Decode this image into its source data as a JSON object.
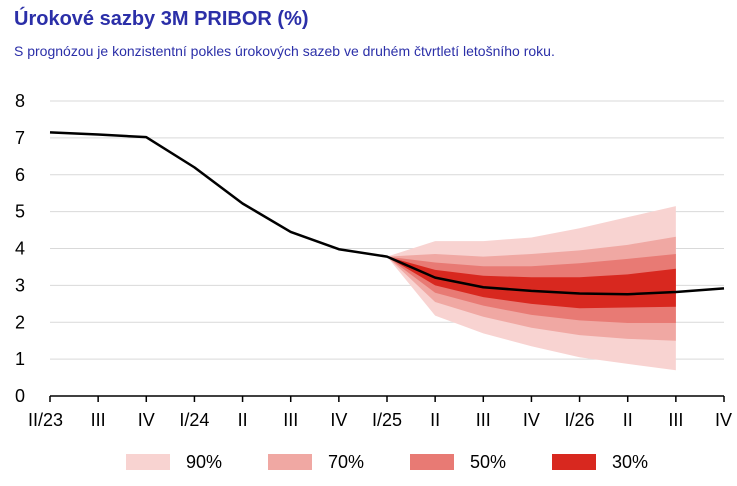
{
  "header": {
    "title": "Úrokové sazby 3M PRIBOR (%)",
    "subtitle": "S prognózou je konzistentní pokles úrokových sazeb ve druhém čtvrtletí letošního roku."
  },
  "colors": {
    "title": "#2b2fa8",
    "line": "#000000",
    "band_90": "#f8d3d1",
    "band_70": "#f0a8a3",
    "band_50": "#e87a74",
    "band_30": "#d8281f"
  },
  "chart_data": {
    "type": "line",
    "categories": [
      "II/23",
      "III",
      "IV",
      "I/24",
      "II",
      "III",
      "IV",
      "I/25",
      "II",
      "III",
      "IV",
      "I/26",
      "II",
      "III",
      "IV"
    ],
    "ylim": [
      0,
      8
    ],
    "yticks": [
      0,
      1,
      2,
      3,
      4,
      5,
      6,
      7,
      8
    ],
    "grid": true,
    "legend_position": "bottom",
    "series": [
      {
        "values": [
          7.15,
          7.09,
          7.02,
          6.2,
          5.22,
          4.45,
          3.98,
          3.78,
          3.21,
          2.95,
          2.85,
          2.78,
          2.76,
          2.82,
          2.92
        ]
      }
    ],
    "fan_start_index": 7,
    "fan_bands": [
      {
        "name": "90%",
        "lower": [
          3.78,
          2.18,
          1.7,
          1.35,
          1.05,
          0.87,
          0.7
        ],
        "upper": [
          3.78,
          4.2,
          4.2,
          4.3,
          4.55,
          4.85,
          5.15
        ]
      },
      {
        "name": "70%",
        "lower": [
          3.78,
          2.55,
          2.15,
          1.85,
          1.65,
          1.55,
          1.5
        ],
        "upper": [
          3.78,
          3.85,
          3.78,
          3.85,
          3.95,
          4.1,
          4.32
        ]
      },
      {
        "name": "50%",
        "lower": [
          3.78,
          2.8,
          2.45,
          2.2,
          2.05,
          1.98,
          1.98
        ],
        "upper": [
          3.78,
          3.62,
          3.52,
          3.52,
          3.6,
          3.72,
          3.85
        ]
      },
      {
        "name": "30%",
        "lower": [
          3.78,
          3.0,
          2.68,
          2.5,
          2.38,
          2.4,
          2.42
        ],
        "upper": [
          3.78,
          3.42,
          3.26,
          3.22,
          3.22,
          3.3,
          3.45
        ]
      }
    ],
    "legend": [
      "90%",
      "70%",
      "50%",
      "30%"
    ]
  }
}
